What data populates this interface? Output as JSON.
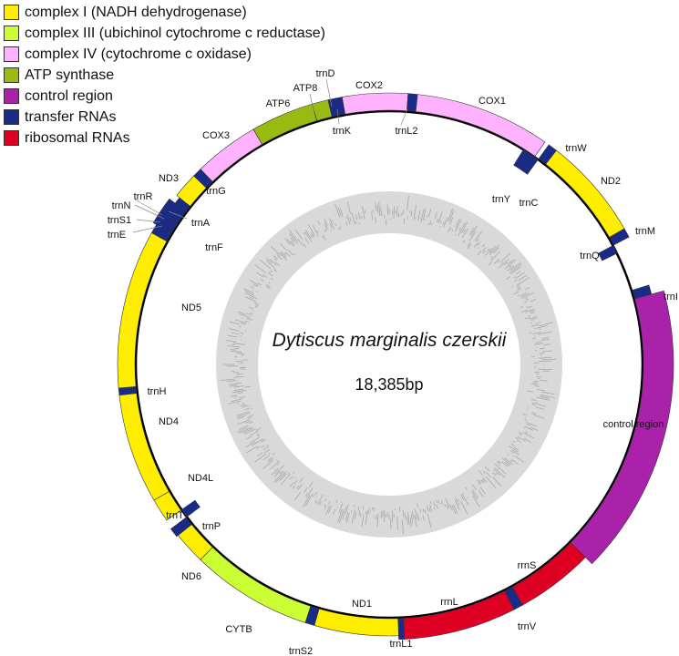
{
  "legend": [
    {
      "label": "complex I (NADH dehydrogenase)",
      "color": "#ffee00"
    },
    {
      "label": "complex III (ubichinol cytochrome c reductase)",
      "color": "#ccff33"
    },
    {
      "label": "complex IV (cytochrome c oxidase)",
      "color": "#ffb3ff"
    },
    {
      "label": "ATP synthase",
      "color": "#99bb11"
    },
    {
      "label": "control region",
      "color": "#aa22aa"
    },
    {
      "label": "transfer RNAs",
      "color": "#1a2a88"
    },
    {
      "label": "ribosomal RNAs",
      "color": "#dd0022"
    }
  ],
  "title": "Dytiscus marginalis czerskii",
  "length": "18,385bp",
  "features": [
    {
      "name": "COX2",
      "type": 2
    },
    {
      "name": "trnL2",
      "type": 5
    },
    {
      "name": "COX1",
      "type": 2
    },
    {
      "name": "trnW",
      "type": 5
    },
    {
      "name": "trnC",
      "type": 5
    },
    {
      "name": "trnY",
      "type": 5
    },
    {
      "name": "ND2",
      "type": 0
    },
    {
      "name": "trnM",
      "type": 5
    },
    {
      "name": "trnQ",
      "type": 5
    },
    {
      "name": "trnI",
      "type": 5
    },
    {
      "name": "control region",
      "type": 4
    },
    {
      "name": "rrnS",
      "type": 6
    },
    {
      "name": "trnV",
      "type": 5
    },
    {
      "name": "rrnL",
      "type": 6
    },
    {
      "name": "trnL1",
      "type": 5
    },
    {
      "name": "ND1",
      "type": 0
    },
    {
      "name": "trnS2",
      "type": 5
    },
    {
      "name": "CYTB",
      "type": 1
    },
    {
      "name": "ND6",
      "type": 0
    },
    {
      "name": "trnP",
      "type": 5
    },
    {
      "name": "trnT",
      "type": 5
    },
    {
      "name": "ND4L",
      "type": 0
    },
    {
      "name": "ND4",
      "type": 0
    },
    {
      "name": "trnH",
      "type": 5
    },
    {
      "name": "ND5",
      "type": 0
    },
    {
      "name": "trnF",
      "type": 5
    },
    {
      "name": "trnE",
      "type": 5
    },
    {
      "name": "trnS1",
      "type": 5
    },
    {
      "name": "trnN",
      "type": 5
    },
    {
      "name": "trnR",
      "type": 5
    },
    {
      "name": "trnA",
      "type": 5
    },
    {
      "name": "ND3",
      "type": 0
    },
    {
      "name": "trnG",
      "type": 5
    },
    {
      "name": "COX3",
      "type": 2
    },
    {
      "name": "ATP6",
      "type": 3
    },
    {
      "name": "ATP8",
      "type": 3
    },
    {
      "name": "trnD",
      "type": 5
    },
    {
      "name": "trnK",
      "type": 5
    }
  ]
}
